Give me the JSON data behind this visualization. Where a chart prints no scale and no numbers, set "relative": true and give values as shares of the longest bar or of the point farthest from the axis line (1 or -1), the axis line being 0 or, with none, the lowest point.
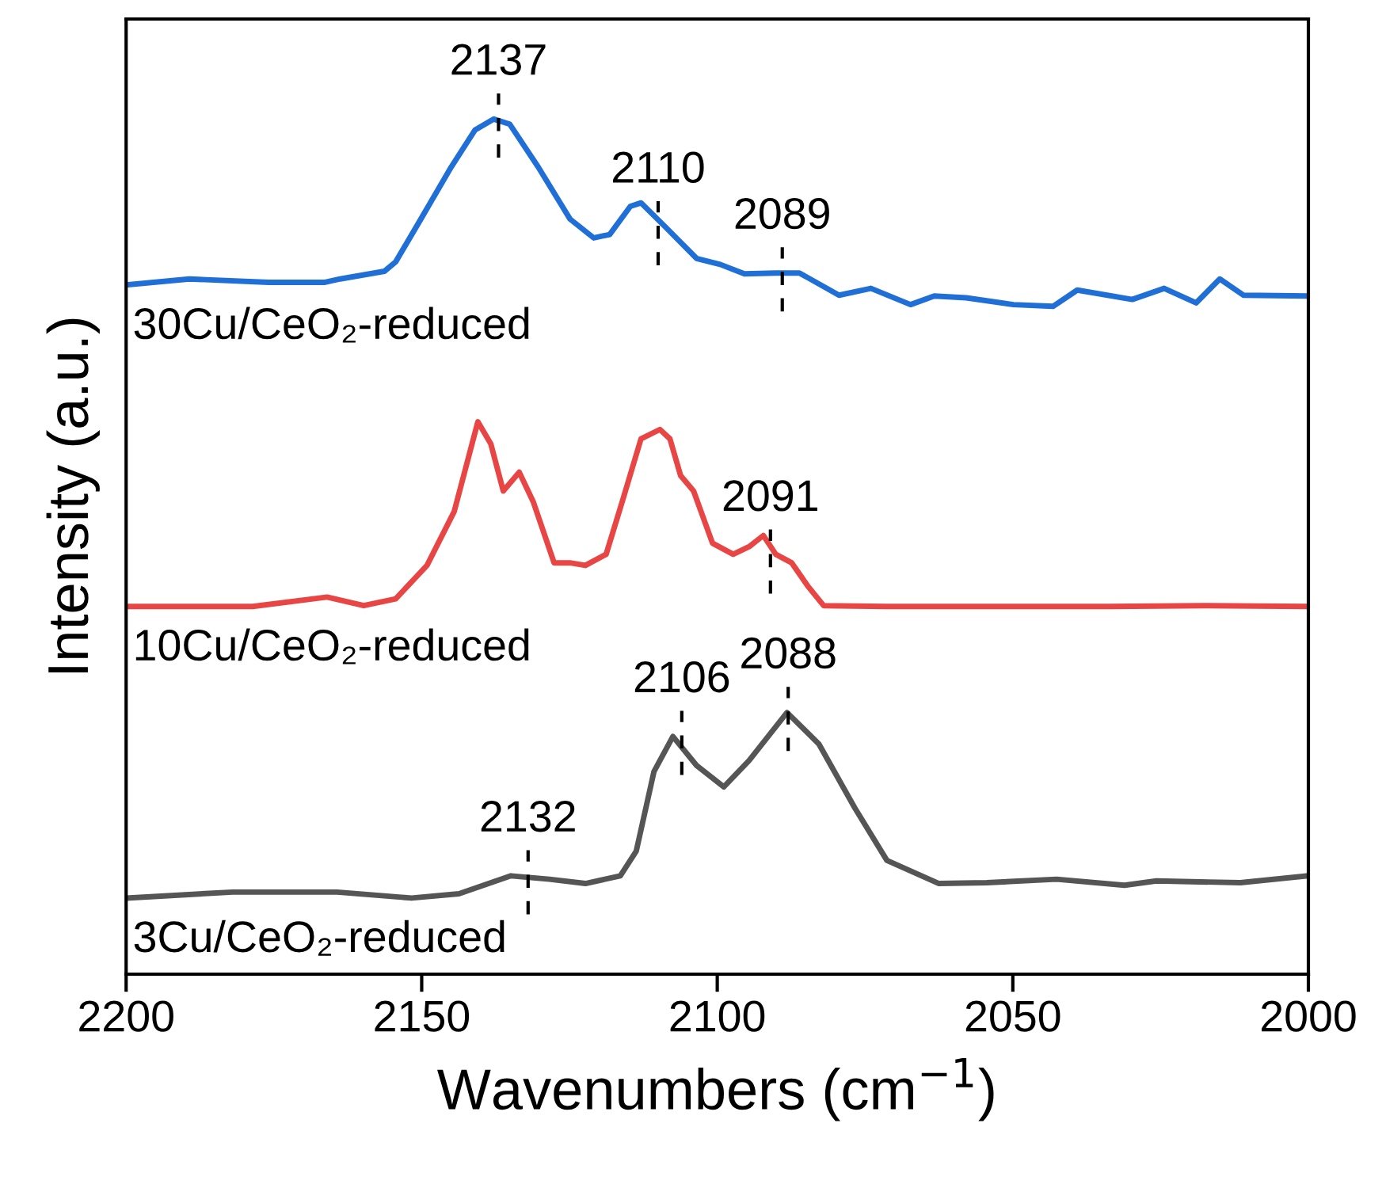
{
  "chart_data": {
    "type": "line",
    "relative": true,
    "xlabel": "Wavenumbers (cm$^{−1}$)",
    "ylabel": "Intensity (a.u.)",
    "xlim": [
      2200,
      2000
    ],
    "xticks": [
      2200,
      2150,
      2100,
      2050,
      2000
    ],
    "grid": false,
    "legend": false,
    "marker": "none",
    "line_style": "solid",
    "series": [
      {
        "name": "30Cu/CeO₂-reduced",
        "color": "#1f6fd6",
        "x": [
          2200,
          2189.3,
          2175.9,
          2166.5,
          2163.8,
          2156.3,
          2154.4,
          2150.4,
          2145.0,
          2141.0,
          2137.8,
          2135.1,
          2130.3,
          2124.9,
          2120.9,
          2118.2,
          2114.7,
          2112.9,
          2108.8,
          2103.5,
          2099.5,
          2095.4,
          2090.1,
          2086.1,
          2079.4,
          2074.0,
          2067.3,
          2063.3,
          2057.9,
          2049.9,
          2043.2,
          2039.1,
          2029.8,
          2024.4,
          2019.0,
          2015.0,
          2011.0,
          2000
        ],
        "values": [
          0.806,
          0.813,
          0.809,
          0.809,
          0.813,
          0.822,
          0.833,
          0.88,
          0.944,
          0.987,
          1.0,
          0.994,
          0.944,
          0.883,
          0.861,
          0.865,
          0.898,
          0.902,
          0.874,
          0.837,
          0.83,
          0.819,
          0.82,
          0.82,
          0.794,
          0.802,
          0.783,
          0.793,
          0.791,
          0.783,
          0.781,
          0.8,
          0.789,
          0.802,
          0.785,
          0.813,
          0.794,
          0.793
        ]
      },
      {
        "name": "10Cu/CeO₂-reduced",
        "color": "#e84545",
        "x": [
          2200,
          2178.6,
          2166.0,
          2159.8,
          2154.4,
          2149.1,
          2144.5,
          2140.5,
          2138.3,
          2136.2,
          2133.5,
          2131.1,
          2127.6,
          2124.9,
          2122.3,
          2118.8,
          2116.1,
          2112.9,
          2109.7,
          2108.0,
          2106.2,
          2104.0,
          2100.8,
          2097.3,
          2094.6,
          2092.2,
          2090.1,
          2087.4,
          2084.7,
          2082.0,
          2071.3,
          2033.8,
          2017.7,
          2000
        ],
        "values": [
          0.43,
          0.43,
          0.441,
          0.431,
          0.439,
          0.478,
          0.541,
          0.646,
          0.62,
          0.565,
          0.587,
          0.552,
          0.481,
          0.481,
          0.478,
          0.491,
          0.552,
          0.626,
          0.637,
          0.626,
          0.583,
          0.565,
          0.504,
          0.491,
          0.5,
          0.513,
          0.491,
          0.481,
          0.454,
          0.431,
          0.43,
          0.43,
          0.431,
          0.43
        ]
      },
      {
        "name": "3Cu/CeO₂-reduced",
        "color": "#555555",
        "x": [
          2200,
          2182.0,
          2164.3,
          2151.7,
          2143.7,
          2134.9,
          2128.4,
          2122.3,
          2116.4,
          2113.7,
          2110.7,
          2107.5,
          2103.5,
          2098.9,
          2094.6,
          2088.2,
          2082.8,
          2076.7,
          2071.3,
          2062.5,
          2054.4,
          2042.6,
          2031.1,
          2025.7,
          2011.5,
          2000
        ],
        "values": [
          0.089,
          0.096,
          0.096,
          0.089,
          0.094,
          0.115,
          0.111,
          0.106,
          0.115,
          0.144,
          0.237,
          0.278,
          0.244,
          0.219,
          0.25,
          0.306,
          0.269,
          0.194,
          0.133,
          0.106,
          0.107,
          0.111,
          0.104,
          0.109,
          0.107,
          0.115
        ]
      }
    ],
    "annotations": [
      {
        "text": "2137",
        "x": 2137,
        "y": 1.0
      },
      {
        "text": "2110",
        "x": 2110,
        "y": 0.874
      },
      {
        "text": "2089",
        "x": 2089,
        "y": 0.82
      },
      {
        "text": "2091",
        "x": 2091,
        "y": 0.49
      },
      {
        "text": "2106",
        "x": 2106,
        "y": 0.278
      },
      {
        "text": "2088",
        "x": 2088,
        "y": 0.306
      },
      {
        "text": "2132",
        "x": 2132,
        "y": 0.115
      }
    ]
  }
}
